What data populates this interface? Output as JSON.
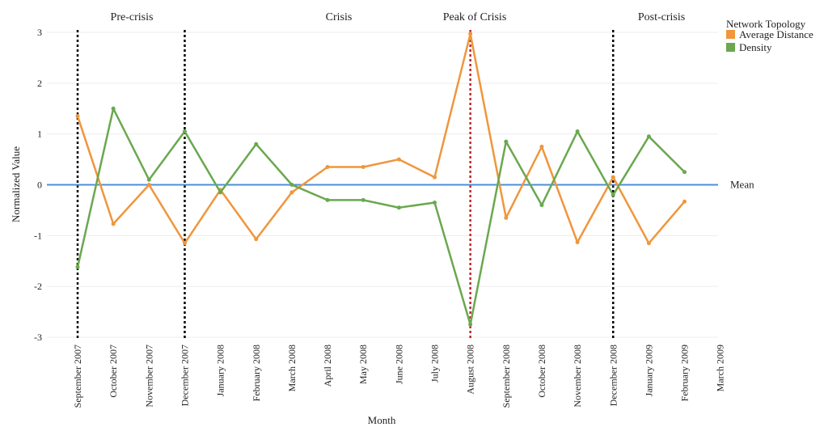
{
  "chart_data": {
    "type": "line",
    "xlabel": "Month",
    "ylabel": "Normalized Value",
    "ylim": [
      -3,
      3
    ],
    "y_ticks": [
      3,
      2,
      1,
      0,
      -1,
      -2,
      -3
    ],
    "grid": "horizontal",
    "legend_position": "top-right",
    "legend_title": "Network Topology",
    "x_ticks": [
      "September 2007",
      "October 2007",
      "November 2007",
      "December 2007",
      "January 2008",
      "February 2008",
      "March 2008",
      "April 2008",
      "May 2008",
      "June 2008",
      "July 2008",
      "August 2008",
      "September 2008",
      "October 2008",
      "November 2008",
      "December 2008",
      "January 2009",
      "February 2009",
      "March 2009"
    ],
    "x": [
      "September 2007",
      "October 2007",
      "November 2007",
      "December 2007",
      "January 2008",
      "February 2008",
      "March 2008",
      "April 2008",
      "May 2008",
      "June 2008",
      "July 2008",
      "August 2008",
      "September 2008",
      "October 2008",
      "November 2008",
      "December 2008",
      "January 2009",
      "February 2009"
    ],
    "series": [
      {
        "name": "Average Distance",
        "color": "#f0963c",
        "values": [
          1.35,
          -0.77,
          0.0,
          -1.15,
          -0.1,
          -1.07,
          -0.15,
          0.35,
          0.35,
          0.5,
          0.15,
          2.97,
          -0.65,
          0.75,
          -1.13,
          0.15,
          -1.15,
          -0.33
        ]
      },
      {
        "name": "Density",
        "color": "#6aa84f",
        "values": [
          -1.62,
          1.5,
          0.1,
          1.05,
          -0.15,
          0.8,
          0.0,
          -0.3,
          -0.3,
          -0.45,
          -0.35,
          -2.75,
          0.85,
          -0.4,
          1.05,
          -0.2,
          0.95,
          0.25
        ]
      }
    ],
    "reference_line": {
      "value": 0,
      "label": "Mean",
      "color": "#4a90d9"
    },
    "phase_labels": [
      {
        "text": "Pre-crisis",
        "color": "#222222"
      },
      {
        "text": "Crisis",
        "color": "#222222"
      },
      {
        "text": "Peak of Crisis",
        "color": "#c0272d"
      },
      {
        "text": "Post-crisis",
        "color": "#222222"
      }
    ],
    "phase_dividers": [
      {
        "x_index": 0,
        "color": "#000000"
      },
      {
        "x_index": 3,
        "color": "#000000"
      },
      {
        "x_index": 11,
        "color": "#c0272d"
      },
      {
        "x_index": 15,
        "color": "#000000"
      }
    ]
  }
}
